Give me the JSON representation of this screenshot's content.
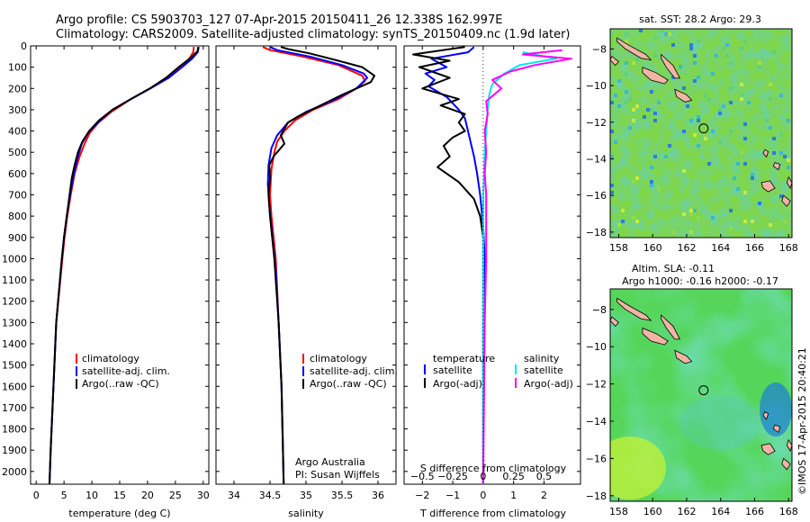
{
  "header": {
    "line1": "Argo profile: CS 5903703_127 07-Apr-2015 20150411_26 12.338S 162.997E",
    "line2": "Climatology: CARS2009. Satellite-adjusted climatology: synTS_20150409.nc (1.9d later)"
  },
  "credit": "©IMOS 17-Apr-2015 20:40:21",
  "colors": {
    "climatology": "#ff0000",
    "satellite": "#0000ff",
    "argo": "#000000",
    "salinity_satellite": "#00e5ee",
    "salinity_argo": "#ff00ff"
  },
  "chart_data": [
    {
      "type": "line",
      "id": "temperature-profile",
      "xlabel": "temperature (deg C)",
      "ylabel": "",
      "xlim": [
        -1,
        31
      ],
      "ylim": [
        2060,
        0
      ],
      "xticks": [
        0,
        5,
        10,
        15,
        20,
        25,
        30
      ],
      "yticks": [
        0,
        100,
        200,
        300,
        400,
        500,
        600,
        700,
        800,
        900,
        1000,
        1100,
        1200,
        1300,
        1400,
        1500,
        1600,
        1700,
        1800,
        1900,
        2000
      ],
      "legend": [
        "climatology",
        "satellite-adj. clim.",
        "Argo(..raw -QC)"
      ],
      "legend_placement": "lower-left",
      "series": [
        {
          "name": "climatology",
          "color": "#ff0000",
          "points": [
            [
              28.3,
              5
            ],
            [
              28.2,
              30
            ],
            [
              27.5,
              60
            ],
            [
              26,
              100
            ],
            [
              23.5,
              150
            ],
            [
              20.5,
              200
            ],
            [
              17,
              250
            ],
            [
              13.5,
              310
            ],
            [
              11.2,
              360
            ],
            [
              9.6,
              410
            ],
            [
              8.7,
              460
            ],
            [
              7.8,
              520
            ],
            [
              6.9,
              600
            ],
            [
              6.2,
              700
            ],
            [
              5.6,
              800
            ],
            [
              5.1,
              900
            ],
            [
              4.7,
              1000
            ],
            [
              3.6,
              1300
            ],
            [
              3.1,
              1600
            ],
            [
              2.6,
              1900
            ],
            [
              2.4,
              2060
            ]
          ]
        },
        {
          "name": "satellite-adj. clim.",
          "color": "#0000ff",
          "points": [
            [
              29.2,
              5
            ],
            [
              29,
              30
            ],
            [
              28,
              60
            ],
            [
              26.2,
              100
            ],
            [
              23.8,
              150
            ],
            [
              20.5,
              200
            ],
            [
              17,
              250
            ],
            [
              13.7,
              300
            ],
            [
              11.1,
              360
            ],
            [
              9.3,
              410
            ],
            [
              8.2,
              460
            ],
            [
              7.5,
              520
            ],
            [
              6.8,
              600
            ],
            [
              6.1,
              700
            ],
            [
              5.5,
              800
            ],
            [
              5,
              900
            ],
            [
              4.6,
              1000
            ],
            [
              3.6,
              1300
            ],
            [
              3.1,
              1600
            ],
            [
              2.6,
              1900
            ],
            [
              2.4,
              2060
            ]
          ]
        },
        {
          "name": "Argo(..raw -QC)",
          "color": "#000000",
          "points": [
            [
              29.1,
              5
            ],
            [
              29,
              25
            ],
            [
              27.8,
              55
            ],
            [
              25.8,
              95
            ],
            [
              23.3,
              150
            ],
            [
              20.4,
              200
            ],
            [
              17,
              250
            ],
            [
              13.7,
              300
            ],
            [
              11.3,
              350
            ],
            [
              9.5,
              400
            ],
            [
              8.3,
              450
            ],
            [
              7.5,
              500
            ],
            [
              6.9,
              560
            ],
            [
              6.4,
              620
            ],
            [
              6,
              700
            ],
            [
              5.5,
              800
            ],
            [
              5,
              900
            ],
            [
              4.6,
              1000
            ],
            [
              3.6,
              1300
            ],
            [
              3.1,
              1600
            ],
            [
              2.6,
              1900
            ],
            [
              2.4,
              2060
            ]
          ]
        }
      ]
    },
    {
      "type": "line",
      "id": "salinity-profile",
      "xlabel": "salinity",
      "ylabel": "",
      "xlim": [
        33.75,
        36.25
      ],
      "ylim": [
        2060,
        0
      ],
      "xticks": [
        34,
        34.5,
        35,
        35.5,
        36
      ],
      "legend": [
        "climatology",
        "satellite-adj. clim.",
        "Argo(..raw -QC)"
      ],
      "legend_placement": "lower-left",
      "annotation": [
        "Argo Australia",
        "PI: Susan Wijffels"
      ],
      "series": [
        {
          "name": "climatology",
          "color": "#ff0000",
          "points": [
            [
              34.4,
              5
            ],
            [
              34.5,
              20
            ],
            [
              34.95,
              50
            ],
            [
              35.45,
              90
            ],
            [
              35.78,
              140
            ],
            [
              35.82,
              165
            ],
            [
              35.7,
              200
            ],
            [
              35.45,
              250
            ],
            [
              35.1,
              300
            ],
            [
              34.85,
              350
            ],
            [
              34.7,
              400
            ],
            [
              34.6,
              450
            ],
            [
              34.56,
              500
            ],
            [
              34.52,
              580
            ],
            [
              34.5,
              700
            ],
            [
              34.52,
              800
            ],
            [
              34.55,
              900
            ],
            [
              34.58,
              1000
            ],
            [
              34.62,
              1300
            ],
            [
              34.66,
              1600
            ],
            [
              34.68,
              1900
            ],
            [
              34.69,
              2060
            ]
          ]
        },
        {
          "name": "satellite-adj. clim.",
          "color": "#0000ff",
          "points": [
            [
              34.5,
              5
            ],
            [
              34.6,
              20
            ],
            [
              35.05,
              50
            ],
            [
              35.5,
              90
            ],
            [
              35.8,
              130
            ],
            [
              35.85,
              150
            ],
            [
              35.7,
              200
            ],
            [
              35.35,
              260
            ],
            [
              35,
              310
            ],
            [
              34.75,
              360
            ],
            [
              34.6,
              420
            ],
            [
              34.52,
              480
            ],
            [
              34.48,
              560
            ],
            [
              34.47,
              650
            ],
            [
              34.49,
              750
            ],
            [
              34.52,
              850
            ],
            [
              34.55,
              950
            ],
            [
              34.58,
              1050
            ],
            [
              34.62,
              1300
            ],
            [
              34.66,
              1600
            ],
            [
              34.68,
              1900
            ],
            [
              34.69,
              2060
            ]
          ]
        },
        {
          "name": "Argo(..raw -QC)",
          "color": "#000000",
          "points": [
            [
              34.65,
              5
            ],
            [
              34.75,
              15
            ],
            [
              35.05,
              35
            ],
            [
              35.45,
              70
            ],
            [
              35.78,
              100
            ],
            [
              35.95,
              140
            ],
            [
              35.9,
              170
            ],
            [
              35.7,
              200
            ],
            [
              35.5,
              230
            ],
            [
              35.2,
              280
            ],
            [
              34.9,
              330
            ],
            [
              34.75,
              360
            ],
            [
              34.65,
              420
            ],
            [
              34.7,
              460
            ],
            [
              34.55,
              520
            ],
            [
              34.49,
              560
            ],
            [
              34.5,
              620
            ],
            [
              34.48,
              700
            ],
            [
              34.5,
              800
            ],
            [
              34.53,
              900
            ],
            [
              34.56,
              1000
            ],
            [
              34.62,
              1300
            ],
            [
              34.66,
              1600
            ],
            [
              34.68,
              1900
            ],
            [
              34.69,
              2060
            ]
          ]
        }
      ]
    },
    {
      "type": "line",
      "id": "difference-profile",
      "xlabel": "T difference from climatology",
      "xlabel_top": "S difference from climatology",
      "xlim": [
        -2.6,
        3.2
      ],
      "ylim": [
        2060,
        0
      ],
      "xticks": [
        -2,
        -1,
        0,
        1,
        2
      ],
      "s_xticks": [
        -0.5,
        -0.25,
        0,
        0.25,
        0.5
      ],
      "legend_temperature": [
        "temperature",
        "satellite",
        "Argo(-adj)"
      ],
      "legend_salinity": [
        "salinity",
        "satellite",
        "Argo(-adj)"
      ],
      "legend_placement": "lower-center",
      "series": [
        {
          "name": "satellite",
          "group": "temperature",
          "color": "#0000ff",
          "points": [
            [
              -0.3,
              5
            ],
            [
              -0.5,
              30
            ],
            [
              -1.7,
              60
            ],
            [
              -1.2,
              100
            ],
            [
              -1.9,
              130
            ],
            [
              -1.6,
              160
            ],
            [
              -1.8,
              190
            ],
            [
              -1.2,
              240
            ],
            [
              -0.8,
              300
            ],
            [
              -0.6,
              340
            ],
            [
              -0.5,
              400
            ],
            [
              -0.4,
              460
            ],
            [
              -0.3,
              520
            ],
            [
              -0.2,
              600
            ],
            [
              -0.1,
              700
            ],
            [
              0,
              850
            ],
            [
              0.05,
              1000
            ],
            [
              0,
              1300
            ],
            [
              0,
              2060
            ]
          ]
        },
        {
          "name": "Argo(-adj)",
          "group": "temperature",
          "color": "#000000",
          "points": [
            [
              -0.6,
              5
            ],
            [
              -2.3,
              40
            ],
            [
              -1.1,
              70
            ],
            [
              -2.1,
              100
            ],
            [
              -1.1,
              150
            ],
            [
              -2,
              200
            ],
            [
              -0.8,
              250
            ],
            [
              -1.4,
              280
            ],
            [
              -0.6,
              320
            ],
            [
              -0.8,
              360
            ],
            [
              -0.6,
              400
            ],
            [
              -1,
              430
            ],
            [
              -1.3,
              470
            ],
            [
              -1.1,
              520
            ],
            [
              -1.5,
              570
            ],
            [
              -0.8,
              640
            ],
            [
              -0.3,
              720
            ],
            [
              -0.1,
              800
            ],
            [
              0,
              900
            ],
            [
              0,
              2060
            ]
          ]
        },
        {
          "name": "satellite",
          "group": "salinity",
          "color": "#00e5ee",
          "points": [
            [
              1.3,
              30
            ],
            [
              2.4,
              60
            ],
            [
              1.2,
              90
            ],
            [
              0.7,
              130
            ],
            [
              0.3,
              180
            ],
            [
              0.2,
              230
            ],
            [
              0.15,
              300
            ],
            [
              0.1,
              400
            ],
            [
              0.05,
              500
            ],
            [
              0,
              700
            ],
            [
              0,
              2060
            ]
          ]
        },
        {
          "name": "Argo(-adj)",
          "group": "salinity",
          "color": "#ff00ff",
          "points": [
            [
              2.6,
              20
            ],
            [
              1.3,
              40
            ],
            [
              2.9,
              60
            ],
            [
              1.7,
              90
            ],
            [
              0.9,
              120
            ],
            [
              0.3,
              160
            ],
            [
              0.6,
              200
            ],
            [
              0.1,
              260
            ],
            [
              0.15,
              320
            ],
            [
              0.05,
              400
            ],
            [
              0.1,
              500
            ],
            [
              0.05,
              600
            ],
            [
              0.1,
              700
            ],
            [
              0.1,
              1000
            ],
            [
              0.05,
              1300
            ],
            [
              0,
              2060
            ]
          ]
        }
      ]
    },
    {
      "type": "heatmap",
      "id": "sst-map",
      "title": "sat. SST: 28.2 Argo: 29.3",
      "xlim": [
        157.5,
        168.2
      ],
      "ylim": [
        -18.3,
        -6.9
      ],
      "xticks": [
        158,
        160,
        162,
        164,
        166,
        168
      ],
      "yticks": [
        -8,
        -10,
        -12,
        -14,
        -16,
        -18
      ],
      "argo_position": [
        162.997,
        -12.338
      ]
    },
    {
      "type": "heatmap",
      "id": "sla-map",
      "title": "Altim. SLA: -0.11",
      "subtitle": "Argo h1000: -0.16 h2000: -0.17",
      "xlim": [
        157.5,
        168.2
      ],
      "ylim": [
        -18.3,
        -6.9
      ],
      "xticks": [
        158,
        160,
        162,
        164,
        166,
        168
      ],
      "yticks": [
        -8,
        -10,
        -12,
        -14,
        -16,
        -18
      ],
      "argo_position": [
        162.997,
        -12.338
      ]
    }
  ]
}
